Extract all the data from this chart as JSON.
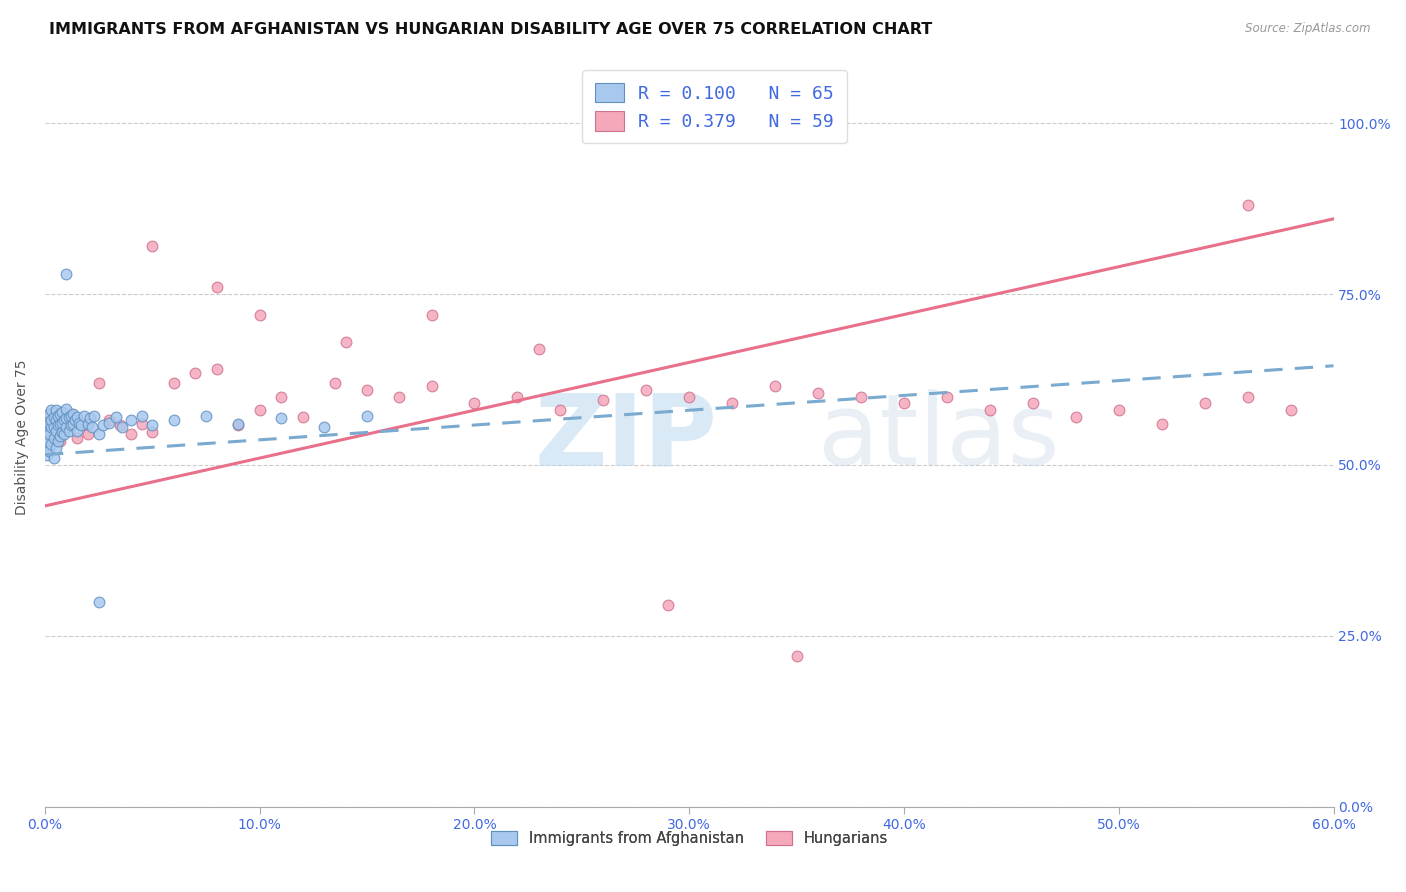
{
  "title": "IMMIGRANTS FROM AFGHANISTAN VS HUNGARIAN DISABILITY AGE OVER 75 CORRELATION CHART",
  "source": "Source: ZipAtlas.com",
  "ylabel": "Disability Age Over 75",
  "xmin": 0.0,
  "xmax": 0.6,
  "ymin": 0.0,
  "ymax": 1.05,
  "xtick_vals": [
    0.0,
    0.1,
    0.2,
    0.3,
    0.4,
    0.5,
    0.6
  ],
  "xtick_labels": [
    "0.0%",
    "10.0%",
    "20.0%",
    "30.0%",
    "40.0%",
    "50.0%",
    "60.0%"
  ],
  "ytick_vals": [
    0.0,
    0.25,
    0.5,
    0.75,
    1.0
  ],
  "ytick_labels_right": [
    "0.0%",
    "25.0%",
    "50.0%",
    "75.0%",
    "100.0%"
  ],
  "legend_line1": "R = 0.100   N = 65",
  "legend_line2": "R = 0.379   N = 59",
  "color_afghanistan": "#A8C8EE",
  "color_hungarians": "#F4A8BA",
  "color_trendline_blue": "#7AAAD0",
  "color_trendline_pink": "#E8708A",
  "color_tick": "#4169E1",
  "background_color": "#ffffff",
  "legend_label1": "Immigrants from Afghanistan",
  "legend_label2": "Hungarians",
  "title_fontsize": 11.5,
  "axis_label_fontsize": 10,
  "tick_fontsize": 10,
  "legend_fontsize": 13,
  "afghan_x": [
    0.001,
    0.001,
    0.001,
    0.002,
    0.002,
    0.002,
    0.002,
    0.003,
    0.003,
    0.003,
    0.003,
    0.004,
    0.004,
    0.004,
    0.004,
    0.005,
    0.005,
    0.005,
    0.005,
    0.006,
    0.006,
    0.006,
    0.007,
    0.007,
    0.007,
    0.008,
    0.008,
    0.008,
    0.009,
    0.009,
    0.01,
    0.01,
    0.01,
    0.011,
    0.011,
    0.012,
    0.012,
    0.013,
    0.013,
    0.014,
    0.015,
    0.015,
    0.016,
    0.017,
    0.018,
    0.02,
    0.021,
    0.022,
    0.023,
    0.025,
    0.027,
    0.03,
    0.033,
    0.036,
    0.04,
    0.045,
    0.05,
    0.06,
    0.075,
    0.09,
    0.11,
    0.13,
    0.15,
    0.025,
    0.01
  ],
  "afghan_y": [
    0.515,
    0.535,
    0.55,
    0.52,
    0.545,
    0.56,
    0.575,
    0.53,
    0.555,
    0.565,
    0.58,
    0.51,
    0.54,
    0.555,
    0.57,
    0.525,
    0.55,
    0.565,
    0.58,
    0.535,
    0.558,
    0.572,
    0.542,
    0.56,
    0.575,
    0.548,
    0.562,
    0.578,
    0.545,
    0.565,
    0.555,
    0.568,
    0.582,
    0.55,
    0.57,
    0.558,
    0.572,
    0.56,
    0.575,
    0.565,
    0.55,
    0.57,
    0.562,
    0.558,
    0.572,
    0.56,
    0.568,
    0.555,
    0.572,
    0.545,
    0.558,
    0.562,
    0.57,
    0.555,
    0.565,
    0.572,
    0.558,
    0.565,
    0.572,
    0.56,
    0.568,
    0.555,
    0.572,
    0.3,
    0.78
  ],
  "hung_x": [
    0.001,
    0.002,
    0.003,
    0.004,
    0.005,
    0.006,
    0.007,
    0.008,
    0.01,
    0.012,
    0.015,
    0.018,
    0.02,
    0.025,
    0.03,
    0.035,
    0.04,
    0.045,
    0.05,
    0.06,
    0.07,
    0.08,
    0.09,
    0.1,
    0.11,
    0.12,
    0.135,
    0.15,
    0.165,
    0.18,
    0.2,
    0.22,
    0.24,
    0.26,
    0.28,
    0.3,
    0.32,
    0.34,
    0.36,
    0.38,
    0.4,
    0.42,
    0.44,
    0.46,
    0.48,
    0.5,
    0.52,
    0.54,
    0.56,
    0.58,
    0.05,
    0.08,
    0.1,
    0.14,
    0.18,
    0.23,
    0.29,
    0.35,
    0.56
  ],
  "hung_y": [
    0.57,
    0.555,
    0.54,
    0.558,
    0.545,
    0.562,
    0.535,
    0.548,
    0.56,
    0.575,
    0.54,
    0.558,
    0.545,
    0.62,
    0.565,
    0.558,
    0.545,
    0.56,
    0.548,
    0.62,
    0.635,
    0.64,
    0.558,
    0.58,
    0.6,
    0.57,
    0.62,
    0.61,
    0.6,
    0.615,
    0.59,
    0.6,
    0.58,
    0.595,
    0.61,
    0.6,
    0.59,
    0.615,
    0.605,
    0.6,
    0.59,
    0.6,
    0.58,
    0.59,
    0.57,
    0.58,
    0.56,
    0.59,
    0.6,
    0.58,
    0.82,
    0.76,
    0.72,
    0.68,
    0.72,
    0.67,
    0.295,
    0.22,
    0.88
  ],
  "trendline_blue_x0": 0.0,
  "trendline_blue_y0": 0.515,
  "trendline_blue_x1": 0.6,
  "trendline_blue_y1": 0.645,
  "trendline_pink_x0": 0.0,
  "trendline_pink_y0": 0.44,
  "trendline_pink_x1": 0.6,
  "trendline_pink_y1": 0.86
}
